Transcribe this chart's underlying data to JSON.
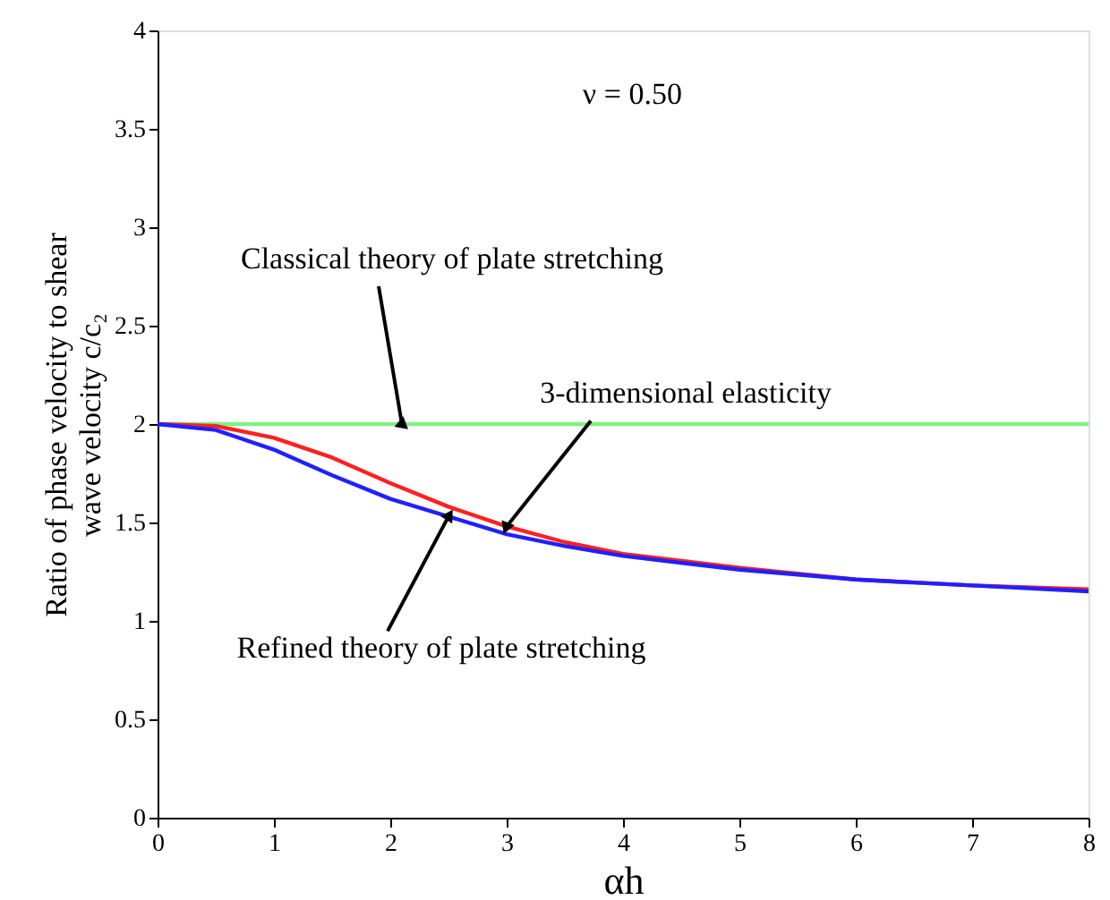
{
  "chart_data": {
    "type": "line",
    "xlabel": "αh",
    "ylabel": "Ratio of phase velocity to shear\nwave velocity  c/c₂",
    "xlim": [
      0,
      8
    ],
    "ylim": [
      0,
      4
    ],
    "xticks": [
      0,
      1,
      2,
      3,
      4,
      5,
      6,
      7,
      8
    ],
    "yticks": [
      0,
      0.5,
      1,
      1.5,
      2,
      2.5,
      3,
      3.5,
      4
    ],
    "grid": false,
    "marker": "none",
    "line_style": "solid",
    "series": [
      {
        "color": "#80f080",
        "x": [
          0,
          8
        ],
        "values": [
          2,
          2
        ]
      },
      {
        "color": "#ff2020",
        "x": [
          0,
          0.5,
          1,
          1.5,
          2,
          2.5,
          3,
          3.5,
          4,
          5,
          6,
          7,
          8
        ],
        "values": [
          2,
          1.99,
          1.93,
          1.83,
          1.7,
          1.58,
          1.48,
          1.4,
          1.34,
          1.27,
          1.21,
          1.18,
          1.16
        ]
      },
      {
        "color": "#2020ff",
        "x": [
          0,
          0.5,
          1,
          1.5,
          2,
          2.5,
          3,
          3.5,
          4,
          5,
          6,
          7,
          8
        ],
        "values": [
          2,
          1.97,
          1.87,
          1.74,
          1.62,
          1.53,
          1.44,
          1.38,
          1.33,
          1.26,
          1.21,
          1.18,
          1.15
        ]
      }
    ],
    "annotations": [
      "ν = 0.50",
      {
        "text": "Classical theory of plate stretching",
        "x": 2.1,
        "y": 2.0
      },
      {
        "text": "3-dimensional elasticity",
        "x": 3.0,
        "y": 1.48
      },
      {
        "text": "Refined theory of plate stretching",
        "x": 2.5,
        "y": 1.53
      }
    ]
  }
}
